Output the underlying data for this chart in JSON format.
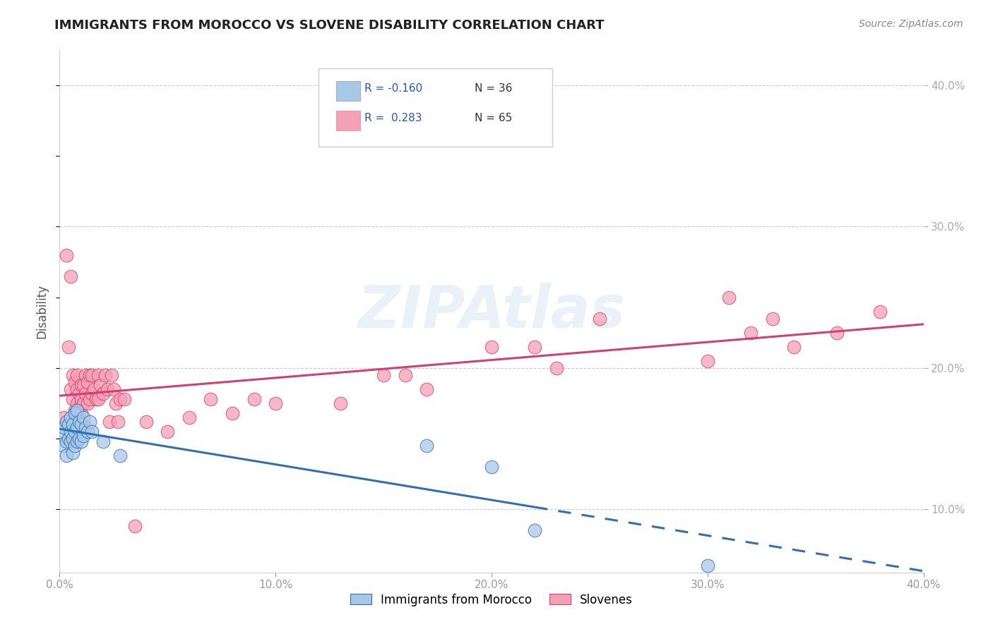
{
  "title": "IMMIGRANTS FROM MOROCCO VS SLOVENE DISABILITY CORRELATION CHART",
  "source": "Source: ZipAtlas.com",
  "ylabel": "Disability",
  "xlim": [
    0.0,
    0.4
  ],
  "ylim": [
    0.055,
    0.425
  ],
  "xticks": [
    0.0,
    0.1,
    0.2,
    0.3,
    0.4
  ],
  "yticks": [
    0.1,
    0.2,
    0.3,
    0.4
  ],
  "xtick_labels": [
    "0.0%",
    "10.0%",
    "20.0%",
    "30.0%",
    "40.0%"
  ],
  "ytick_labels": [
    "10.0%",
    "20.0%",
    "30.0%",
    "40.0%"
  ],
  "legend_label1": "Immigrants from Morocco",
  "legend_label2": "Slovenes",
  "color_blue": "#a8c8e8",
  "color_pink": "#f4a0b5",
  "color_blue_line": "#3070b0",
  "color_pink_line": "#d04070",
  "blue_points_x": [
    0.001,
    0.002,
    0.002,
    0.003,
    0.003,
    0.003,
    0.004,
    0.004,
    0.005,
    0.005,
    0.005,
    0.006,
    0.006,
    0.006,
    0.007,
    0.007,
    0.007,
    0.008,
    0.008,
    0.008,
    0.009,
    0.009,
    0.01,
    0.01,
    0.011,
    0.011,
    0.012,
    0.013,
    0.014,
    0.015,
    0.02,
    0.028,
    0.17,
    0.2,
    0.22,
    0.3
  ],
  "blue_points_y": [
    0.155,
    0.158,
    0.145,
    0.148,
    0.162,
    0.138,
    0.16,
    0.15,
    0.148,
    0.155,
    0.165,
    0.14,
    0.15,
    0.16,
    0.145,
    0.155,
    0.168,
    0.148,
    0.158,
    0.17,
    0.15,
    0.162,
    0.148,
    0.16,
    0.152,
    0.165,
    0.158,
    0.155,
    0.162,
    0.155,
    0.148,
    0.138,
    0.145,
    0.13,
    0.085,
    0.06
  ],
  "pink_points_x": [
    0.002,
    0.003,
    0.004,
    0.005,
    0.005,
    0.006,
    0.006,
    0.007,
    0.007,
    0.008,
    0.008,
    0.008,
    0.009,
    0.009,
    0.01,
    0.01,
    0.01,
    0.011,
    0.011,
    0.012,
    0.012,
    0.013,
    0.013,
    0.014,
    0.014,
    0.015,
    0.015,
    0.016,
    0.017,
    0.018,
    0.018,
    0.019,
    0.02,
    0.021,
    0.022,
    0.023,
    0.024,
    0.025,
    0.026,
    0.027,
    0.028,
    0.03,
    0.035,
    0.04,
    0.05,
    0.06,
    0.07,
    0.08,
    0.09,
    0.1,
    0.13,
    0.15,
    0.16,
    0.17,
    0.2,
    0.22,
    0.23,
    0.25,
    0.3,
    0.31,
    0.32,
    0.33,
    0.34,
    0.36,
    0.38
  ],
  "pink_points_y": [
    0.165,
    0.28,
    0.215,
    0.185,
    0.265,
    0.178,
    0.195,
    0.17,
    0.19,
    0.175,
    0.185,
    0.195,
    0.172,
    0.182,
    0.168,
    0.178,
    0.188,
    0.175,
    0.188,
    0.182,
    0.195,
    0.175,
    0.19,
    0.178,
    0.195,
    0.182,
    0.195,
    0.185,
    0.178,
    0.195,
    0.178,
    0.188,
    0.182,
    0.195,
    0.185,
    0.162,
    0.195,
    0.185,
    0.175,
    0.162,
    0.178,
    0.178,
    0.088,
    0.162,
    0.155,
    0.165,
    0.178,
    0.168,
    0.178,
    0.175,
    0.175,
    0.195,
    0.195,
    0.185,
    0.215,
    0.215,
    0.2,
    0.235,
    0.205,
    0.25,
    0.225,
    0.235,
    0.215,
    0.225,
    0.24
  ]
}
